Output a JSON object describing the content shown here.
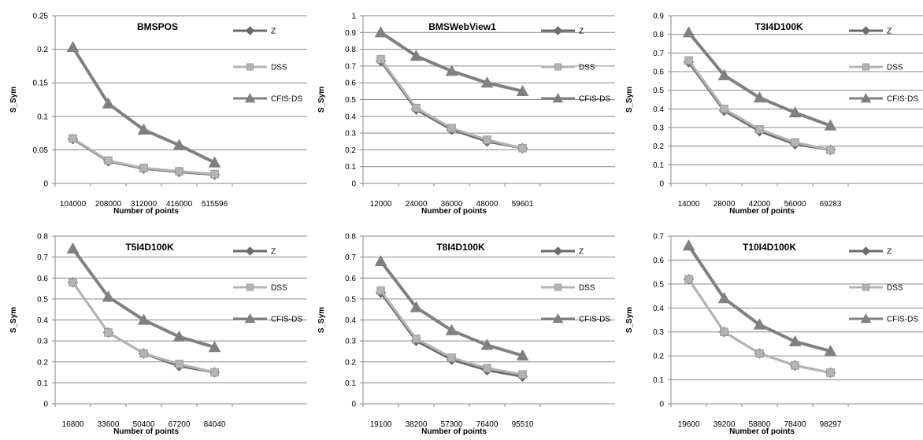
{
  "colors": {
    "Z": "#6b6b6b",
    "DSS": "#b4b4b4",
    "CFIS-DS": "#808080",
    "axis": "#888888",
    "grid": "#888888"
  },
  "chart_data": [
    {
      "type": "line",
      "title": "BMSPOS",
      "xlabel": "Number of points",
      "ylabel": "S_Sym",
      "categories": [
        "104000",
        "208000",
        "312000",
        "416000",
        "515596"
      ],
      "ylim": [
        0,
        0.25
      ],
      "yticks": [
        "0",
        "0.05",
        "0.1",
        "0.15",
        "0.2",
        "0.25"
      ],
      "ystep": 0.05,
      "grid": true,
      "legend": "right",
      "series": [
        {
          "name": "Z",
          "marker": "diamond",
          "values": [
            0.066,
            0.033,
            0.022,
            0.017,
            0.013
          ]
        },
        {
          "name": "DSS",
          "marker": "square",
          "values": [
            0.067,
            0.034,
            0.023,
            0.018,
            0.014
          ]
        },
        {
          "name": "CFIS-DS",
          "marker": "triangle",
          "values": [
            0.203,
            0.119,
            0.08,
            0.057,
            0.031
          ]
        }
      ]
    },
    {
      "type": "line",
      "title": "BMSWebView1",
      "xlabel": "Number of points",
      "ylabel": "S_Sym",
      "categories": [
        "12000",
        "24000",
        "36000",
        "48000",
        "59601"
      ],
      "ylim": [
        0,
        1
      ],
      "yticks": [
        "0",
        "0.1",
        "0.2",
        "0.3",
        "0.4",
        "0.5",
        "0.6",
        "0.7",
        "0.8",
        "0.9",
        "1"
      ],
      "ystep": 0.1,
      "grid": true,
      "legend": "right",
      "series": [
        {
          "name": "Z",
          "marker": "diamond",
          "values": [
            0.73,
            0.44,
            0.32,
            0.25,
            0.21
          ]
        },
        {
          "name": "DSS",
          "marker": "square",
          "values": [
            0.74,
            0.45,
            0.33,
            0.26,
            0.21
          ]
        },
        {
          "name": "CFIS-DS",
          "marker": "triangle",
          "values": [
            0.9,
            0.76,
            0.67,
            0.6,
            0.55
          ]
        }
      ]
    },
    {
      "type": "line",
      "title": "T3I4D100K",
      "xlabel": "Number of points",
      "ylabel": "S_Sym",
      "categories": [
        "14000",
        "28000",
        "42000",
        "56000",
        "69283"
      ],
      "ylim": [
        0,
        0.9
      ],
      "yticks": [
        "0",
        "0.1",
        "0.2",
        "0.3",
        "0.4",
        "0.5",
        "0.6",
        "0.7",
        "0.8",
        "0.9"
      ],
      "ystep": 0.1,
      "grid": true,
      "legend": "right",
      "series": [
        {
          "name": "Z",
          "marker": "diamond",
          "values": [
            0.65,
            0.39,
            0.28,
            0.21,
            0.18
          ]
        },
        {
          "name": "DSS",
          "marker": "square",
          "values": [
            0.66,
            0.4,
            0.29,
            0.22,
            0.18
          ]
        },
        {
          "name": "CFIS-DS",
          "marker": "triangle",
          "values": [
            0.81,
            0.58,
            0.46,
            0.38,
            0.31
          ]
        }
      ]
    },
    {
      "type": "line",
      "title": "T5I4D100K",
      "xlabel": "Number of points",
      "ylabel": "S_Sym",
      "categories": [
        "16800",
        "33600",
        "50400",
        "67200",
        "84040"
      ],
      "ylim": [
        0,
        0.8
      ],
      "yticks": [
        "0",
        "0.1",
        "0.2",
        "0.3",
        "0.4",
        "0.5",
        "0.6",
        "0.7",
        "0.8"
      ],
      "ystep": 0.1,
      "grid": true,
      "legend": "right",
      "series": [
        {
          "name": "Z",
          "marker": "diamond",
          "values": [
            0.58,
            0.34,
            0.24,
            0.18,
            0.15
          ]
        },
        {
          "name": "DSS",
          "marker": "square",
          "values": [
            0.58,
            0.34,
            0.24,
            0.19,
            0.15
          ]
        },
        {
          "name": "CFIS-DS",
          "marker": "triangle",
          "values": [
            0.74,
            0.51,
            0.4,
            0.32,
            0.27
          ]
        }
      ]
    },
    {
      "type": "line",
      "title": "T8I4D100K",
      "xlabel": "Number of points",
      "ylabel": "S_Sym",
      "categories": [
        "19100",
        "38200",
        "57300",
        "76400",
        "95510"
      ],
      "ylim": [
        0,
        0.8
      ],
      "yticks": [
        "0",
        "0.1",
        "0.2",
        "0.3",
        "0.4",
        "0.5",
        "0.6",
        "0.7",
        "0.8"
      ],
      "ystep": 0.1,
      "grid": true,
      "legend": "right",
      "series": [
        {
          "name": "Z",
          "marker": "diamond",
          "values": [
            0.53,
            0.3,
            0.21,
            0.16,
            0.13
          ]
        },
        {
          "name": "DSS",
          "marker": "square",
          "values": [
            0.54,
            0.31,
            0.22,
            0.17,
            0.14
          ]
        },
        {
          "name": "CFIS-DS",
          "marker": "triangle",
          "values": [
            0.68,
            0.46,
            0.35,
            0.28,
            0.23
          ]
        }
      ]
    },
    {
      "type": "line",
      "title": "T10I4D100K",
      "xlabel": "Number of points",
      "ylabel": "S_Sym",
      "categories": [
        "19600",
        "39200",
        "58800",
        "78400",
        "98297"
      ],
      "ylim": [
        0,
        0.7
      ],
      "yticks": [
        "0",
        "0.1",
        "0.2",
        "0.3",
        "0.4",
        "0.5",
        "0.6",
        "0.7"
      ],
      "ystep": 0.1,
      "grid": true,
      "legend": "right",
      "series": [
        {
          "name": "Z",
          "marker": "diamond",
          "values": [
            0.52,
            0.3,
            0.21,
            0.16,
            0.13
          ]
        },
        {
          "name": "DSS",
          "marker": "square",
          "values": [
            0.52,
            0.3,
            0.21,
            0.16,
            0.13
          ]
        },
        {
          "name": "CFIS-DS",
          "marker": "triangle",
          "values": [
            0.66,
            0.44,
            0.33,
            0.26,
            0.22
          ]
        }
      ]
    }
  ]
}
